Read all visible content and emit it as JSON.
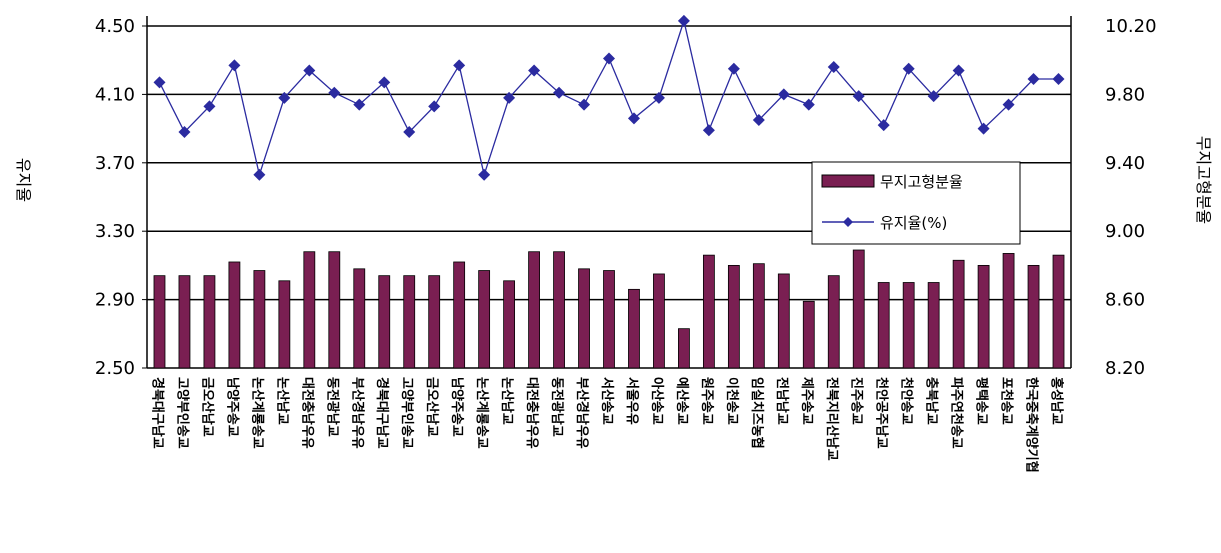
{
  "chart_data": {
    "type": "bar",
    "categories": [
      "경북대구남교",
      "고양부인송교",
      "금오산남교",
      "남양주송교",
      "논산계룡송교",
      "논산남교",
      "대전충남우유",
      "동전광남교",
      "부산경남우유",
      "경북대구남교",
      "고양부인송교",
      "금오산남교",
      "남양주송교",
      "논산계룡송교",
      "논산남교",
      "대전충남우유",
      "동전광남교",
      "부산경남우유",
      "서산송교",
      "서울우유",
      "아산송교",
      "예산송교",
      "원주송교",
      "이천송교",
      "임실치즈농협",
      "전남남교",
      "제주송교",
      "전북지리산남교",
      "진주송교",
      "천안공주남교",
      "천안송교",
      "충북남교",
      "파주연천송교",
      "평택송교",
      "포천송교",
      "한국중축계양기협",
      "홍성남교"
    ],
    "series": [
      {
        "name": "무지고형분율",
        "axis": "right",
        "values": [
          8.74,
          8.74,
          8.74,
          8.82,
          8.77,
          8.71,
          8.88,
          8.88,
          8.78,
          8.74,
          8.74,
          8.74,
          8.82,
          8.77,
          8.71,
          8.88,
          8.88,
          8.78,
          8.77,
          8.66,
          8.75,
          8.43,
          8.86,
          8.8,
          8.81,
          8.75,
          8.59,
          8.74,
          8.89,
          8.7,
          8.7,
          8.7,
          8.83,
          8.8,
          8.87,
          8.8,
          8.86
        ]
      },
      {
        "name": "유지율(%)",
        "axis": "left",
        "values": [
          4.17,
          3.88,
          4.03,
          4.27,
          3.63,
          4.08,
          4.24,
          4.11,
          4.04,
          4.17,
          3.88,
          4.03,
          4.27,
          3.63,
          4.08,
          4.24,
          4.11,
          4.04,
          4.31,
          3.96,
          4.08,
          4.53,
          3.89,
          4.25,
          3.95,
          4.1,
          4.04,
          4.26,
          4.09,
          3.92,
          4.25,
          4.09,
          4.24,
          3.9,
          4.04,
          4.19,
          4.19
        ]
      }
    ],
    "left_axis": {
      "title": "유지율",
      "min": 2.5,
      "max": 4.5,
      "ticks": [
        "4.50",
        "4.10",
        "3.70",
        "3.30",
        "2.90",
        "2.50"
      ]
    },
    "right_axis": {
      "title": "무지고형분율",
      "min": 8.2,
      "max": 10.2,
      "ticks": [
        "10.20",
        "9.80",
        "9.40",
        "9.00",
        "8.60",
        "8.20"
      ]
    },
    "legend_placement": "right, inside plot",
    "grid": true
  },
  "colors": {
    "bar": "#7a1f52",
    "line": "#2b2ba0",
    "grid": "#000000"
  }
}
